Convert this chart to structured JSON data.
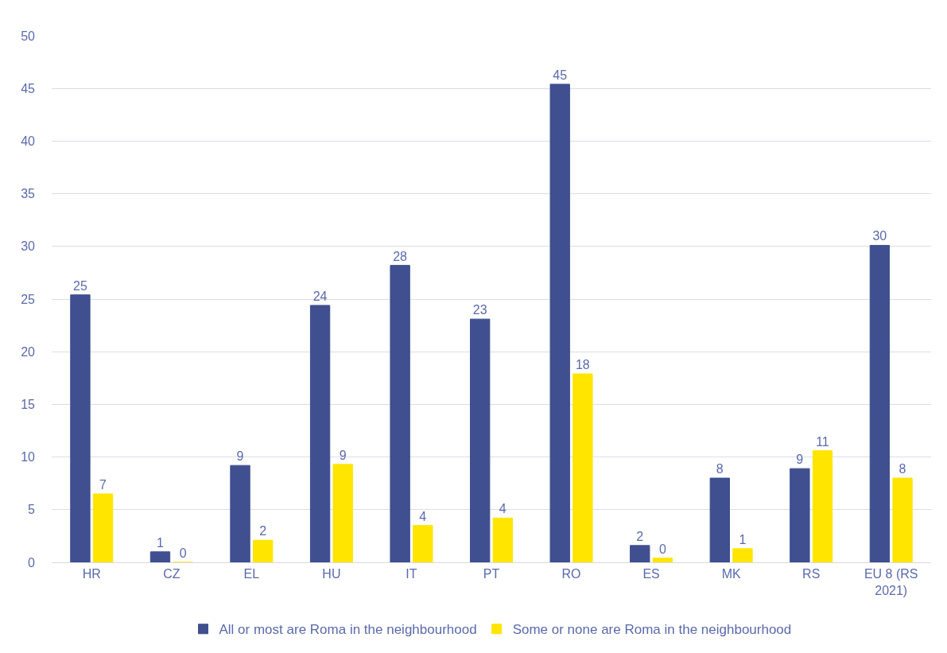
{
  "chart_data": {
    "type": "bar",
    "categories": [
      "HR",
      "CZ",
      "EL",
      "HU",
      "IT",
      "PT",
      "RO",
      "ES",
      "MK",
      "RS",
      "EU 8 (RS 2021)"
    ],
    "series": [
      {
        "name": "All or most are Roma in the neighbourhood",
        "color": "#3f4f8f",
        "values": [
          25.4,
          1.0,
          9.2,
          24.4,
          28.2,
          23.1,
          45.4,
          1.6,
          8.0,
          8.9,
          30.1
        ],
        "value_labels": [
          "25",
          "1",
          "9",
          "24",
          "28",
          "23",
          "45",
          "2",
          "8",
          "9",
          "30"
        ]
      },
      {
        "name": "Some or none are Roma in the neighbourhood",
        "color": "#ffe500",
        "values": [
          6.5,
          0,
          2.1,
          9.3,
          3.5,
          4.2,
          17.9,
          0.4,
          1.3,
          10.6,
          8.0
        ],
        "value_labels": [
          "7",
          "0",
          "2",
          "9",
          "4",
          "4",
          "18",
          "0",
          "1",
          "11",
          "8"
        ]
      }
    ],
    "ylim": [
      0,
      50
    ],
    "yticks": [
      0,
      5,
      10,
      15,
      20,
      25,
      30,
      35,
      40,
      45,
      50
    ],
    "grid": "y",
    "legend": "bottom"
  }
}
